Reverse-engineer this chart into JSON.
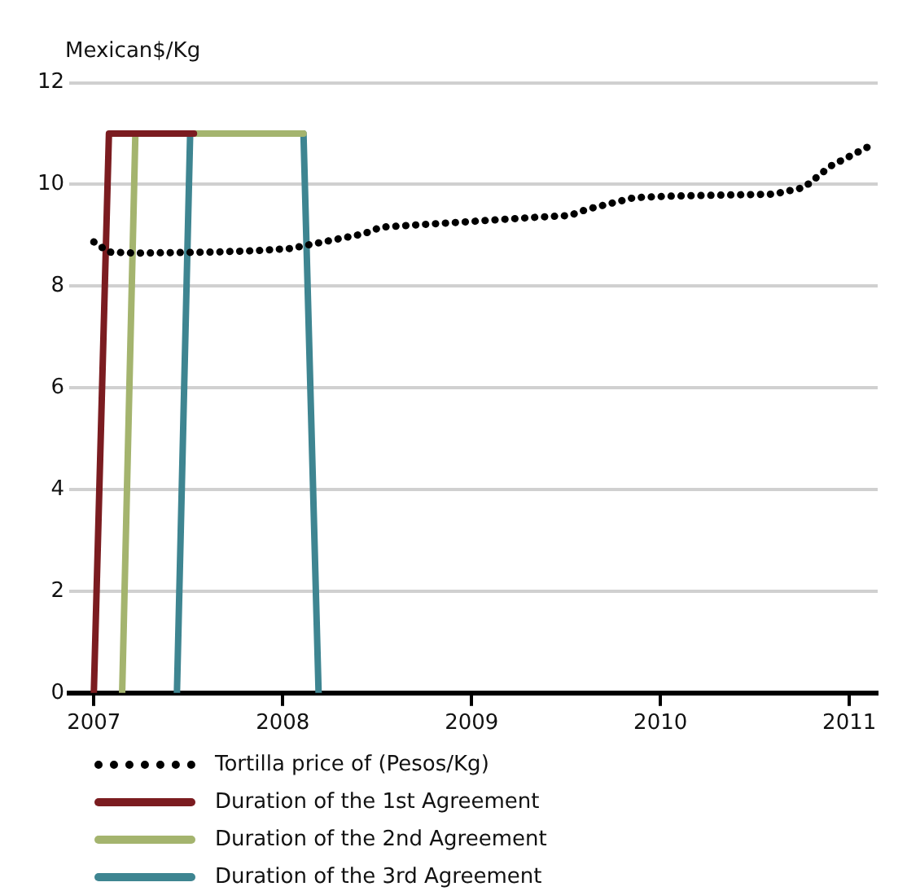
{
  "chart_data": {
    "type": "line",
    "ylabel": "Mexican$/Kg",
    "xlim": [
      2006.87,
      2011.15
    ],
    "xticks": [
      2007,
      2008,
      2009,
      2010,
      2011
    ],
    "ylim": [
      0,
      12
    ],
    "yticks": [
      0,
      2,
      4,
      6,
      8,
      10,
      12
    ],
    "grid": "y",
    "legend": "bottom",
    "marker": "none",
    "series": [
      {
        "name": "Tortilla price of (Pesos/Kg)",
        "color": "#000000",
        "line_style": "dotted",
        "x": [
          2007.0,
          2007.08,
          2007.23,
          2007.63,
          2007.87,
          2008.04,
          2008.43,
          2008.52,
          2008.95,
          2009.32,
          2009.52,
          2009.61,
          2009.86,
          2010.05,
          2010.6,
          2010.76,
          2010.9,
          2011.12
        ],
        "values": [
          8.87,
          8.67,
          8.65,
          8.67,
          8.7,
          8.74,
          9.03,
          9.16,
          9.26,
          9.35,
          9.39,
          9.51,
          9.74,
          9.77,
          9.81,
          9.94,
          10.36,
          10.78
        ]
      },
      {
        "name": "Duration of the 1st Agreement",
        "color": "#7b1c20",
        "line_style": "solid",
        "x": [
          2007.0,
          2007.08,
          2007.53
        ],
        "values": [
          0,
          11,
          11
        ]
      },
      {
        "name": "Duration of the 2nd Agreement",
        "color": "#a4b46e",
        "line_style": "solid",
        "x": [
          2007.15,
          2007.22,
          2008.11
        ],
        "values": [
          0,
          11,
          11
        ]
      },
      {
        "name": "Duration of the 3rd Agreement",
        "color": "#3e8591",
        "line_style": "solid",
        "x": [
          2007.44,
          2007.51,
          2008.11,
          2008.19
        ],
        "values": [
          0,
          11,
          11,
          0
        ]
      }
    ]
  }
}
